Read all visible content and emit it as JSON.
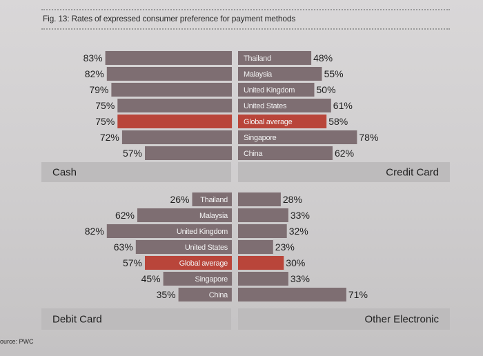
{
  "figure": {
    "title": "Fig. 13: Rates of expressed consumer preference for payment methods",
    "source": "ource: PWC"
  },
  "colors": {
    "bar": "#7e6e72",
    "highlight": "#b9453a",
    "panel": "#bdbbbc",
    "text": "#1f1f1f",
    "bar_text": "#f2f2f2"
  },
  "chart_data": {
    "type": "bar",
    "title": "Fig. 13: Rates of expressed consumer preference for payment methods",
    "categories": [
      "Thailand",
      "Malaysia",
      "United Kingdom",
      "United States",
      "Global average",
      "Singapore",
      "China"
    ],
    "highlight_category": "Global average",
    "unit": "%",
    "panels": [
      {
        "name": "Cash",
        "values": [
          83,
          82,
          79,
          75,
          75,
          72,
          57
        ]
      },
      {
        "name": "Credit Card",
        "values": [
          48,
          55,
          50,
          61,
          58,
          78,
          62
        ]
      },
      {
        "name": "Debit Card",
        "values": [
          26,
          62,
          82,
          63,
          57,
          45,
          35
        ]
      },
      {
        "name": "Other Electronic",
        "values": [
          28,
          33,
          32,
          23,
          30,
          33,
          71
        ]
      }
    ]
  }
}
